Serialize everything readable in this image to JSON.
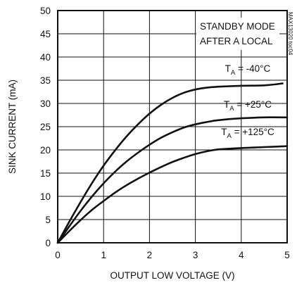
{
  "chart_data": {
    "type": "line",
    "xlabel": "OUTPUT LOW VOLTAGE (V)",
    "ylabel": "SINK CURRENT (mA)",
    "xlim": [
      0,
      5
    ],
    "ylim": [
      0,
      50
    ],
    "xticks": [
      "0",
      "1",
      "2",
      "3",
      "4",
      "5"
    ],
    "yticks": [
      "0",
      "5",
      "10",
      "15",
      "20",
      "25",
      "30",
      "35",
      "40",
      "45",
      "50"
    ],
    "grid": true,
    "annotation": [
      "STANDBY MODE",
      "AFTER A LOCAL"
    ],
    "figure_id": "MAX13020 toc04",
    "series": [
      {
        "name_main": "T",
        "name_sub": "A",
        "name_rest": " = -40°C",
        "x": [
          0,
          0.25,
          0.5,
          0.75,
          1.0,
          1.25,
          1.5,
          1.75,
          2.0,
          2.25,
          2.5,
          2.75,
          3.0,
          3.25,
          3.5,
          4.0,
          4.5,
          4.9
        ],
        "y": [
          0,
          4.5,
          8.8,
          12.9,
          16.6,
          19.9,
          22.9,
          25.5,
          27.8,
          29.7,
          31.2,
          32.3,
          33.0,
          33.4,
          33.6,
          33.8,
          33.9,
          34.3
        ]
      },
      {
        "name_main": "T",
        "name_sub": "A",
        "name_rest": " = +25°C",
        "x": [
          0,
          0.25,
          0.5,
          0.75,
          1.0,
          1.25,
          1.5,
          1.75,
          2.0,
          2.25,
          2.5,
          2.75,
          3.0,
          3.25,
          3.5,
          4.0,
          4.5,
          5.0
        ],
        "y": [
          0,
          3.5,
          6.9,
          10.0,
          12.8,
          15.3,
          17.5,
          19.4,
          21.1,
          22.6,
          23.8,
          24.8,
          25.5,
          26.0,
          26.4,
          26.8,
          27.0,
          27.0
        ]
      },
      {
        "name_main": "T",
        "name_sub": "A",
        "name_rest": " = +125°C",
        "x": [
          0,
          0.25,
          0.5,
          0.75,
          1.0,
          1.25,
          1.5,
          1.75,
          2.0,
          2.25,
          2.5,
          2.75,
          3.0,
          3.25,
          3.5,
          4.0,
          4.5,
          5.0
        ],
        "y": [
          0,
          2.5,
          4.9,
          7.1,
          9.0,
          10.8,
          12.4,
          13.8,
          15.1,
          16.3,
          17.4,
          18.3,
          19.1,
          19.7,
          20.1,
          20.4,
          20.6,
          20.8
        ]
      }
    ]
  }
}
